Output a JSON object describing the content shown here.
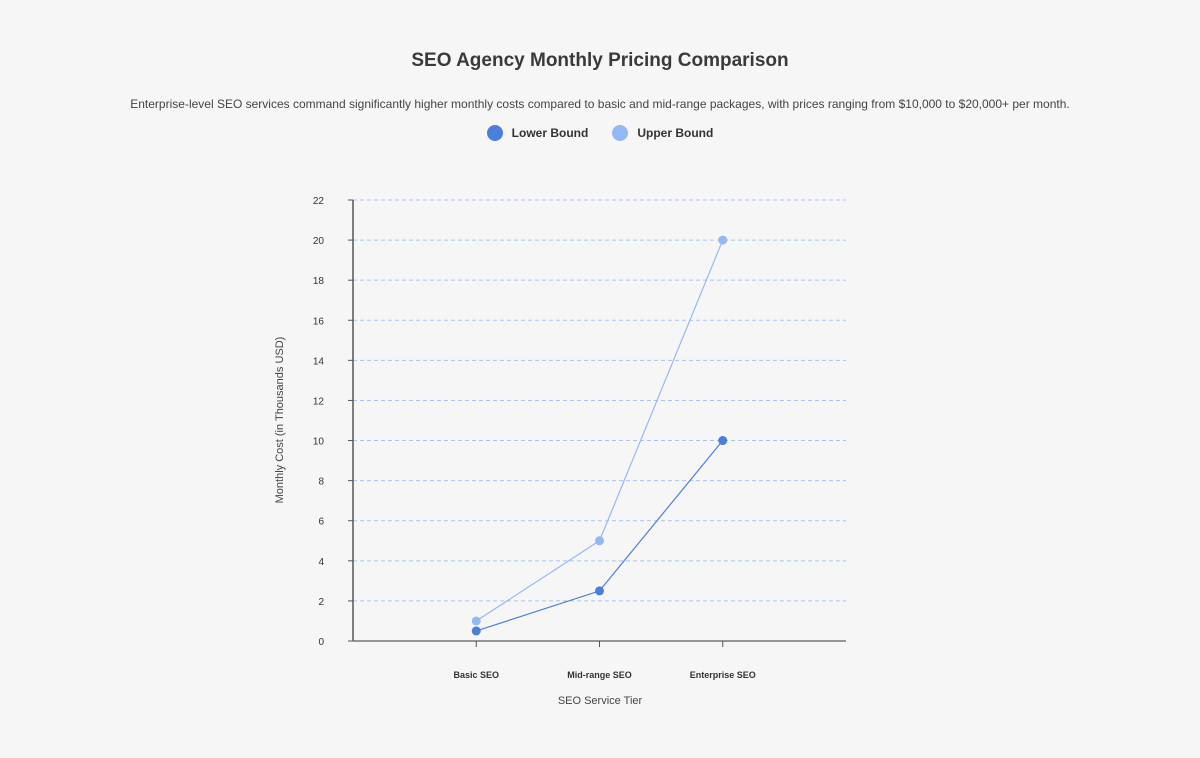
{
  "chart_data": {
    "type": "line",
    "title": "SEO Agency Monthly Pricing Comparison",
    "subtitle": "Enterprise-level SEO services command significantly higher monthly costs compared to basic and mid-range packages, with prices ranging from $10,000 to $20,000+ per month.",
    "xlabel": "SEO Service Tier",
    "ylabel": "Monthly Cost (in Thousands USD)",
    "categories": [
      "Basic SEO",
      "Mid-range SEO",
      "Enterprise SEO"
    ],
    "ylim": [
      0,
      22
    ],
    "yticks": [
      0,
      2,
      4,
      6,
      8,
      10,
      12,
      14,
      16,
      18,
      20,
      22
    ],
    "grid": true,
    "legend_position": "top-center",
    "series": [
      {
        "name": "Lower Bound",
        "values": [
          0.5,
          2.5,
          10
        ],
        "color": "#4a7fdc"
      },
      {
        "name": "Upper Bound",
        "values": [
          1,
          5,
          20
        ],
        "color": "#93b9f5"
      }
    ]
  }
}
